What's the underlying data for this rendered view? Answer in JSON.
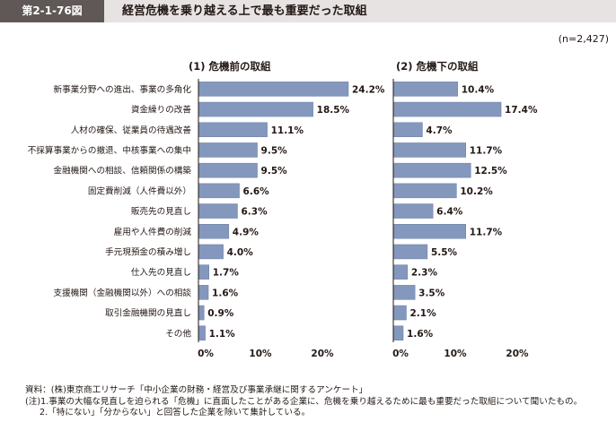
{
  "header": {
    "figure_number": "第2-1-76図",
    "title": "経営危機を乗り越える上で最も重要だった取組"
  },
  "n_note": "(n=2,427)",
  "chart_data": [
    {
      "type": "bar",
      "orientation": "horizontal",
      "title": "(1) 危機前の取組",
      "categories": [
        "新事業分野への進出、事業の多角化",
        "資金繰りの改善",
        "人材の確保、従業員の待遇改善",
        "不採算事業からの撤退、中核事業への集中",
        "金融機関への相談、信頼関係の構築",
        "固定費削減（人件費以外）",
        "販売先の見直し",
        "雇用や人件費の削減",
        "手元現預金の積み増し",
        "仕入先の見直し",
        "支援機関（金融機関以外）への相談",
        "取引金融機関の見直し",
        "その他"
      ],
      "values": [
        24.2,
        18.5,
        11.1,
        9.5,
        9.5,
        6.6,
        6.3,
        4.9,
        4.0,
        1.7,
        1.6,
        0.9,
        1.1
      ],
      "value_labels": [
        "24.2%",
        "18.5%",
        "11.1%",
        "9.5%",
        "9.5%",
        "6.6%",
        "6.3%",
        "4.9%",
        "4.0%",
        "1.7%",
        "1.6%",
        "0.9%",
        "1.1%"
      ],
      "xlim": [
        0,
        30
      ],
      "x_ticks": [
        "0%",
        "10%",
        "20%"
      ],
      "bar_color": "#8497bd"
    },
    {
      "type": "bar",
      "orientation": "horizontal",
      "title": "(2) 危機下の取組",
      "categories": [
        "新事業分野への進出、事業の多角化",
        "資金繰りの改善",
        "人材の確保、従業員の待遇改善",
        "不採算事業からの撤退、中核事業への集中",
        "金融機関への相談、信頼関係の構築",
        "固定費削減（人件費以外）",
        "販売先の見直し",
        "雇用や人件費の削減",
        "手元現預金の積み増し",
        "仕入先の見直し",
        "支援機関（金融機関以外）への相談",
        "取引金融機関の見直し",
        "その他"
      ],
      "values": [
        10.4,
        17.4,
        4.7,
        11.7,
        12.5,
        10.2,
        6.4,
        11.7,
        5.5,
        2.3,
        3.5,
        2.1,
        1.6
      ],
      "value_labels": [
        "10.4%",
        "17.4%",
        "4.7%",
        "11.7%",
        "12.5%",
        "10.2%",
        "6.4%",
        "11.7%",
        "5.5%",
        "2.3%",
        "3.5%",
        "2.1%",
        "1.6%"
      ],
      "xlim": [
        0,
        30
      ],
      "x_ticks": [
        "0%",
        "10%",
        "20%"
      ],
      "bar_color": "#8497bd"
    }
  ],
  "source": {
    "line1": "資料：(株)東京商工リサーチ「中小企業の財務・経営及び事業承継に関するアンケート」",
    "line2": "(注)1.事業の大幅な見直しを迫られる「危機」に直面したことがある企業に、危機を乗り越えるために最も重要だった取組について聞いたもの。",
    "line3": "2.「特にない」「分からない」と回答した企業を除いて集計している。"
  },
  "colors": {
    "header_dark": "#5f5856",
    "header_light": "#e6e3e2",
    "bar": "#8497bd",
    "bar_edge": "#6a7fa8",
    "axis": "#231815"
  }
}
